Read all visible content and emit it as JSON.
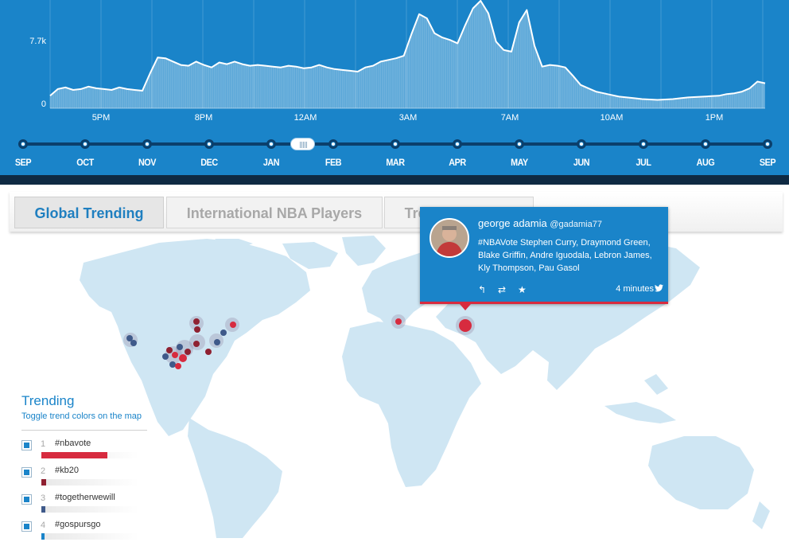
{
  "chart_data": {
    "type": "area",
    "y_ticks": [
      "7.7k",
      "0"
    ],
    "x_ticks": [
      "5PM",
      "8PM",
      "12AM",
      "3AM",
      "7AM",
      "10AM",
      "1PM"
    ],
    "series": [
      {
        "values": [
          1500,
          2300,
          2500,
          2200,
          2300,
          2600,
          2400,
          2300,
          2200,
          2500,
          2300,
          2200,
          2100,
          4200,
          6100,
          6000,
          5600,
          5200,
          5100,
          5600,
          5200,
          4900,
          5500,
          5300,
          5600,
          5300,
          5100,
          5200,
          5100,
          5000,
          4900,
          5100,
          5000,
          4800,
          4900,
          5200,
          4900,
          4700,
          4600,
          4500,
          4400,
          4900,
          5100,
          5600,
          5800,
          6000,
          6300,
          8900,
          11300,
          10800,
          9000,
          8500,
          8200,
          7800,
          10000,
          12000,
          12900,
          11400,
          8000,
          7000,
          6800,
          10300,
          11800,
          7500,
          5000,
          5200,
          5100,
          4900,
          3900,
          2800,
          2400,
          2000,
          1800,
          1600,
          1400,
          1300,
          1200,
          1100,
          1050,
          1000,
          1050,
          1100,
          1200,
          1300,
          1350,
          1400,
          1450,
          1500,
          1700,
          1800,
          2000,
          2400,
          3200,
          3000
        ]
      }
    ]
  },
  "timeline": {
    "months": [
      "SEP",
      "OCT",
      "NOV",
      "DEC",
      "JAN",
      "FEB",
      "MAR",
      "APR",
      "MAY",
      "JUN",
      "JUL",
      "AUG",
      "SEP"
    ]
  },
  "tabs": [
    {
      "label": "Global Trending"
    },
    {
      "label": "International NBA Players"
    },
    {
      "label": "Trending Teams"
    }
  ],
  "trending": {
    "title": "Trending",
    "subtitle": "Toggle trend colors on the map",
    "items": [
      {
        "rank": "1",
        "tag": "#nbavote",
        "color": "#d72b3f",
        "fraction": 0.68
      },
      {
        "rank": "2",
        "tag": "#kb20",
        "color": "#8f2131",
        "fraction": 0.05
      },
      {
        "rank": "3",
        "tag": "#togetherwewill",
        "color": "#3f5a8a",
        "fraction": 0.04
      },
      {
        "rank": "4",
        "tag": "#gospursgo",
        "color": "#1a84c9",
        "fraction": 0.03
      }
    ]
  },
  "tweet": {
    "name": "george adamia",
    "handle": "@gadamia77",
    "text": "#NBAVote Stephen Curry, Draymond Green, Blake Griffin, Andre Iguodala, Lebron James, Kly Thompson, Pau Gasol",
    "time": "4 minutes",
    "reply_icon": "reply-icon",
    "retweet_icon": "retweet-icon",
    "favorite_icon": "star-icon",
    "bird_icon": "twitter-bird-icon"
  },
  "colors": {
    "primary": "#1a84c9",
    "accent": "#d72b3f",
    "dark": "#0f2a43",
    "land": "#cfe6f3"
  }
}
